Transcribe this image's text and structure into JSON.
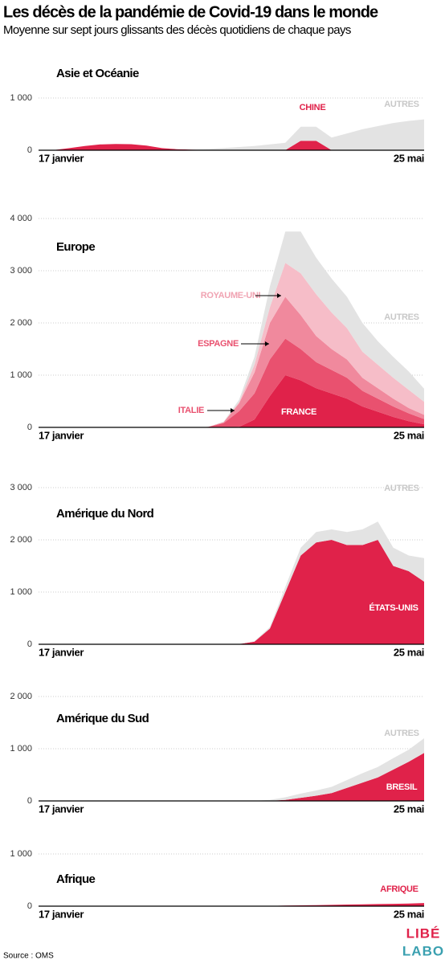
{
  "title": "Les décès de la pandémie de Covid-19 dans le monde",
  "subtitle": "Moyenne sur sept jours glissants des décès quotidiens de chaque pays",
  "source": "Source : OMS",
  "logo": [
    "LIBÉ",
    "LABO"
  ],
  "chart_data": [
    {
      "type": "area",
      "title": "Asie et Océanie",
      "categories": [
        "17 janvier",
        null,
        null,
        null,
        null,
        null,
        null,
        null,
        null,
        null,
        null,
        null,
        null,
        null,
        null,
        null,
        null,
        null,
        null,
        null,
        null,
        null,
        null,
        null,
        null,
        "25 mai"
      ],
      "series": [
        {
          "name": "CHINE",
          "color": "#e0224a",
          "values": [
            0,
            5,
            40,
            80,
            110,
            120,
            115,
            90,
            40,
            20,
            10,
            5,
            3,
            2,
            2,
            2,
            2,
            180,
            180,
            2,
            1,
            1,
            1,
            1,
            1,
            1
          ]
        },
        {
          "name": "AUTRES",
          "color": "#e3e3e3",
          "values": [
            0,
            0,
            0,
            0,
            0,
            0,
            0,
            0,
            0,
            2,
            8,
            20,
            40,
            60,
            80,
            110,
            140,
            270,
            270,
            240,
            320,
            400,
            460,
            520,
            560,
            590
          ]
        }
      ],
      "ylim": [
        0,
        1000
      ],
      "yticks": [
        0,
        {
          "value": 1000,
          "label": "1 000"
        }
      ]
    },
    {
      "type": "area",
      "title": "Europe",
      "categories": [
        "17 janvier",
        null,
        null,
        null,
        null,
        null,
        null,
        null,
        null,
        null,
        null,
        null,
        null,
        null,
        null,
        null,
        null,
        null,
        null,
        null,
        null,
        null,
        null,
        null,
        null,
        "25 mai"
      ],
      "series": [
        {
          "name": "FRANCE",
          "color": "#e0224a",
          "values": [
            0,
            0,
            0,
            0,
            0,
            0,
            0,
            0,
            0,
            0,
            0,
            0,
            0,
            10,
            150,
            600,
            1000,
            900,
            750,
            650,
            550,
            400,
            300,
            200,
            120,
            60
          ]
        },
        {
          "name": "ITALIE",
          "color": "#e9516f",
          "values": [
            0,
            0,
            0,
            0,
            0,
            0,
            0,
            0,
            0,
            0,
            0,
            10,
            80,
            300,
            500,
            700,
            700,
            600,
            500,
            450,
            400,
            300,
            250,
            200,
            150,
            100
          ]
        },
        {
          "name": "ESPAGNE",
          "color": "#f0899d",
          "values": [
            0,
            0,
            0,
            0,
            0,
            0,
            0,
            0,
            0,
            0,
            0,
            0,
            20,
            150,
            400,
            700,
            800,
            650,
            500,
            400,
            350,
            250,
            200,
            150,
            100,
            80
          ]
        },
        {
          "name": "ROYAUME-UNI",
          "color": "#f6bdc8",
          "values": [
            0,
            0,
            0,
            0,
            0,
            0,
            0,
            0,
            0,
            0,
            0,
            0,
            0,
            20,
            150,
            300,
            650,
            800,
            800,
            700,
            600,
            500,
            450,
            400,
            350,
            250
          ]
        },
        {
          "name": "AUTRES",
          "color": "#e3e3e3",
          "values": [
            0,
            0,
            0,
            0,
            0,
            0,
            0,
            0,
            0,
            0,
            0,
            0,
            10,
            50,
            150,
            400,
            600,
            800,
            700,
            650,
            600,
            550,
            450,
            400,
            350,
            250
          ]
        }
      ],
      "ylim": [
        0,
        4000
      ],
      "yticks": [
        0,
        {
          "value": 1000,
          "label": "1 000"
        },
        {
          "value": 2000,
          "label": "2 000"
        },
        {
          "value": 3000,
          "label": "3 000"
        },
        {
          "value": 4000,
          "label": "4 000"
        }
      ]
    },
    {
      "type": "area",
      "title": "Amérique du Nord",
      "categories": [
        "17 janvier",
        null,
        null,
        null,
        null,
        null,
        null,
        null,
        null,
        null,
        null,
        null,
        null,
        null,
        null,
        null,
        null,
        null,
        null,
        null,
        null,
        null,
        null,
        null,
        null,
        "25 mai"
      ],
      "series": [
        {
          "name": "ÉTATS-UNIS",
          "color": "#e0224a",
          "values": [
            0,
            0,
            0,
            0,
            0,
            0,
            0,
            0,
            0,
            0,
            0,
            0,
            0,
            5,
            50,
            300,
            1000,
            1700,
            1950,
            2000,
            1900,
            1900,
            2000,
            1500,
            1400,
            1200
          ]
        },
        {
          "name": "AUTRES",
          "color": "#e3e3e3",
          "values": [
            0,
            0,
            0,
            0,
            0,
            0,
            0,
            0,
            0,
            0,
            0,
            0,
            0,
            0,
            10,
            30,
            100,
            150,
            200,
            200,
            250,
            300,
            350,
            350,
            300,
            450
          ]
        }
      ],
      "ylim": [
        0,
        3000
      ],
      "yticks": [
        0,
        {
          "value": 1000,
          "label": "1 000"
        },
        {
          "value": 2000,
          "label": "2 000"
        },
        {
          "value": 3000,
          "label": "3 000"
        }
      ]
    },
    {
      "type": "area",
      "title": "Amérique du Sud",
      "categories": [
        "17 janvier",
        null,
        null,
        null,
        null,
        null,
        null,
        null,
        null,
        null,
        null,
        null,
        null,
        null,
        null,
        null,
        null,
        null,
        null,
        null,
        null,
        null,
        null,
        null,
        null,
        "25 mai"
      ],
      "series": [
        {
          "name": "BRESIL",
          "color": "#e0224a",
          "values": [
            0,
            0,
            0,
            0,
            0,
            0,
            0,
            0,
            0,
            0,
            0,
            0,
            0,
            0,
            0,
            5,
            20,
            60,
            100,
            150,
            250,
            350,
            450,
            600,
            750,
            920
          ]
        },
        {
          "name": "AUTRES",
          "color": "#e3e3e3",
          "values": [
            0,
            0,
            0,
            0,
            0,
            0,
            0,
            0,
            0,
            0,
            0,
            0,
            0,
            0,
            2,
            15,
            50,
            80,
            100,
            120,
            150,
            180,
            200,
            220,
            230,
            280
          ]
        }
      ],
      "ylim": [
        0,
        2000
      ],
      "yticks": [
        0,
        {
          "value": 1000,
          "label": "1 000"
        },
        {
          "value": 2000,
          "label": "2 000"
        }
      ]
    },
    {
      "type": "area",
      "title": "Afrique",
      "categories": [
        "17 janvier",
        null,
        null,
        null,
        null,
        null,
        null,
        null,
        null,
        null,
        null,
        null,
        null,
        null,
        null,
        null,
        null,
        null,
        null,
        null,
        null,
        null,
        null,
        null,
        null,
        "25 mai"
      ],
      "series": [
        {
          "name": "AFRIQUE",
          "color": "#e0224a",
          "values": [
            0,
            0,
            0,
            0,
            0,
            0,
            0,
            0,
            0,
            0,
            0,
            0,
            0,
            0,
            2,
            5,
            10,
            15,
            20,
            25,
            30,
            35,
            40,
            45,
            50,
            60
          ]
        }
      ],
      "ylim": [
        0,
        1000
      ],
      "yticks": [
        0,
        {
          "value": 1000,
          "label": "1 000"
        }
      ]
    }
  ]
}
